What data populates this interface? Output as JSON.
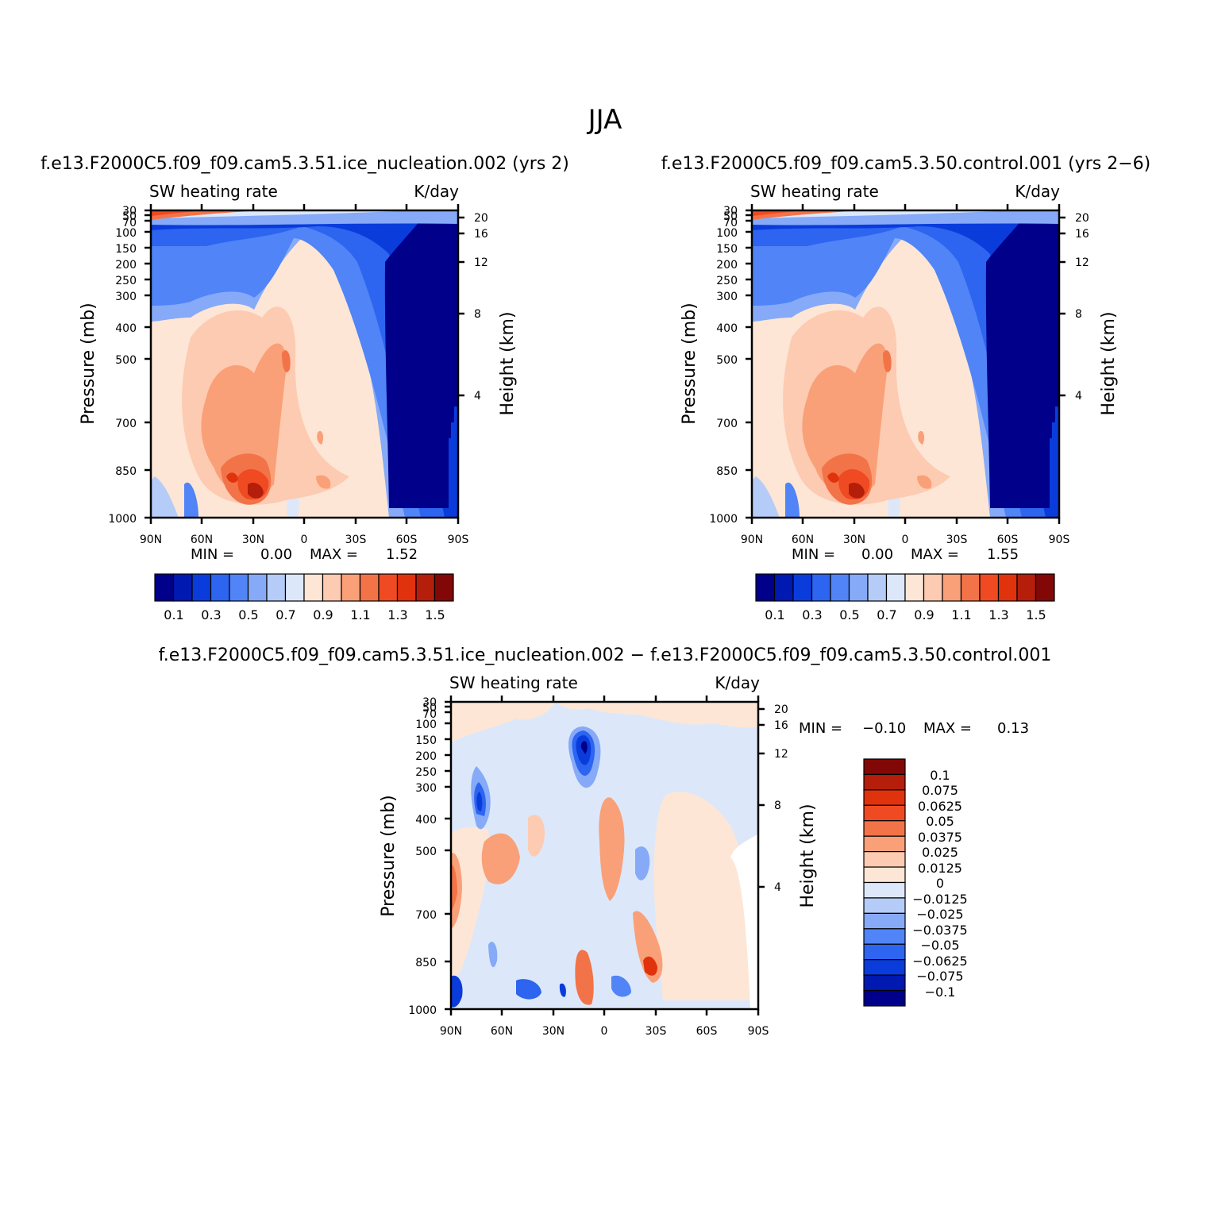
{
  "page_title": "JJA",
  "chart_data": [
    {
      "id": "panel-ice",
      "type": "heatmap",
      "title": "f.e13.F2000C5.f09_f09.cam5.3.51.ice_nucleation.002  (yrs  2)",
      "left_label": "SW  heating  rate",
      "right_label": "K/day",
      "ylabel": "Pressure  (mb)",
      "y2label": "Height  (km)",
      "x_ticks": [
        "90N",
        "60N",
        "30N",
        "0",
        "30S",
        "60S",
        "90S"
      ],
      "y_ticks": [
        "30",
        "50",
        "70",
        "100",
        "150",
        "200",
        "250",
        "300",
        "400",
        "500",
        "700",
        "850",
        "1000"
      ],
      "y2_ticks": [
        "20",
        "16",
        "12",
        "8",
        "4"
      ],
      "min_label": "MIN  =",
      "min_value": "0.00",
      "max_label": "MAX  =",
      "max_value": "1.52",
      "colorbar_labels": [
        "0.1",
        "0.3",
        "0.5",
        "0.7",
        "0.9",
        "1.1",
        "1.3",
        "1.5"
      ]
    },
    {
      "id": "panel-control",
      "type": "heatmap",
      "title": "f.e13.F2000C5.f09_f09.cam5.3.50.control.001  (yrs  2-6)",
      "left_label": "SW  heating  rate",
      "right_label": "K/day",
      "ylabel": "Pressure  (mb)",
      "y2label": "Height  (km)",
      "x_ticks": [
        "90N",
        "60N",
        "30N",
        "0",
        "30S",
        "60S",
        "90S"
      ],
      "y_ticks": [
        "30",
        "50",
        "70",
        "100",
        "150",
        "200",
        "250",
        "300",
        "400",
        "500",
        "700",
        "850",
        "1000"
      ],
      "y2_ticks": [
        "20",
        "16",
        "12",
        "8",
        "4"
      ],
      "min_label": "MIN  =",
      "min_value": "0.00",
      "max_label": "MAX  =",
      "max_value": "1.55",
      "colorbar_labels": [
        "0.1",
        "0.3",
        "0.5",
        "0.7",
        "0.9",
        "1.1",
        "1.3",
        "1.5"
      ]
    },
    {
      "id": "panel-diff",
      "type": "heatmap",
      "title": "f.e13.F2000C5.f09_f09.cam5.3.51.ice_nucleation.002 - f.e13.F2000C5.f09_f09.cam5.3.50.control.001",
      "left_label": "SW  heating  rate",
      "right_label": "K/day",
      "ylabel": "Pressure  (mb)",
      "y2label": "Height  (km)",
      "x_ticks": [
        "90N",
        "60N",
        "30N",
        "0",
        "30S",
        "60S",
        "90S"
      ],
      "y_ticks": [
        "30",
        "50",
        "70",
        "100",
        "150",
        "200",
        "250",
        "300",
        "400",
        "500",
        "700",
        "850",
        "1000"
      ],
      "y2_ticks": [
        "20",
        "16",
        "12",
        "8",
        "4"
      ],
      "min_label": "MIN  =",
      "min_value": "-0.10",
      "max_label": "MAX  =",
      "max_value": "0.13",
      "colorbar_labels": [
        "0.1",
        "0.075",
        "0.0625",
        "0.05",
        "0.0375",
        "0.025",
        "0.0125",
        "0",
        "-0.0125",
        "-0.025",
        "-0.0375",
        "-0.05",
        "-0.0625",
        "-0.075",
        "-0.1"
      ]
    }
  ],
  "palette": [
    "#00008b",
    "#0019b0",
    "#0a3cdc",
    "#2d64f0",
    "#5084f7",
    "#86aaf7",
    "#b4ccf7",
    "#dce8fa",
    "#fde6d6",
    "#fdcbb1",
    "#f9a078",
    "#f37348",
    "#ef4a22",
    "#e0320d",
    "#b41e0a",
    "#820808"
  ]
}
